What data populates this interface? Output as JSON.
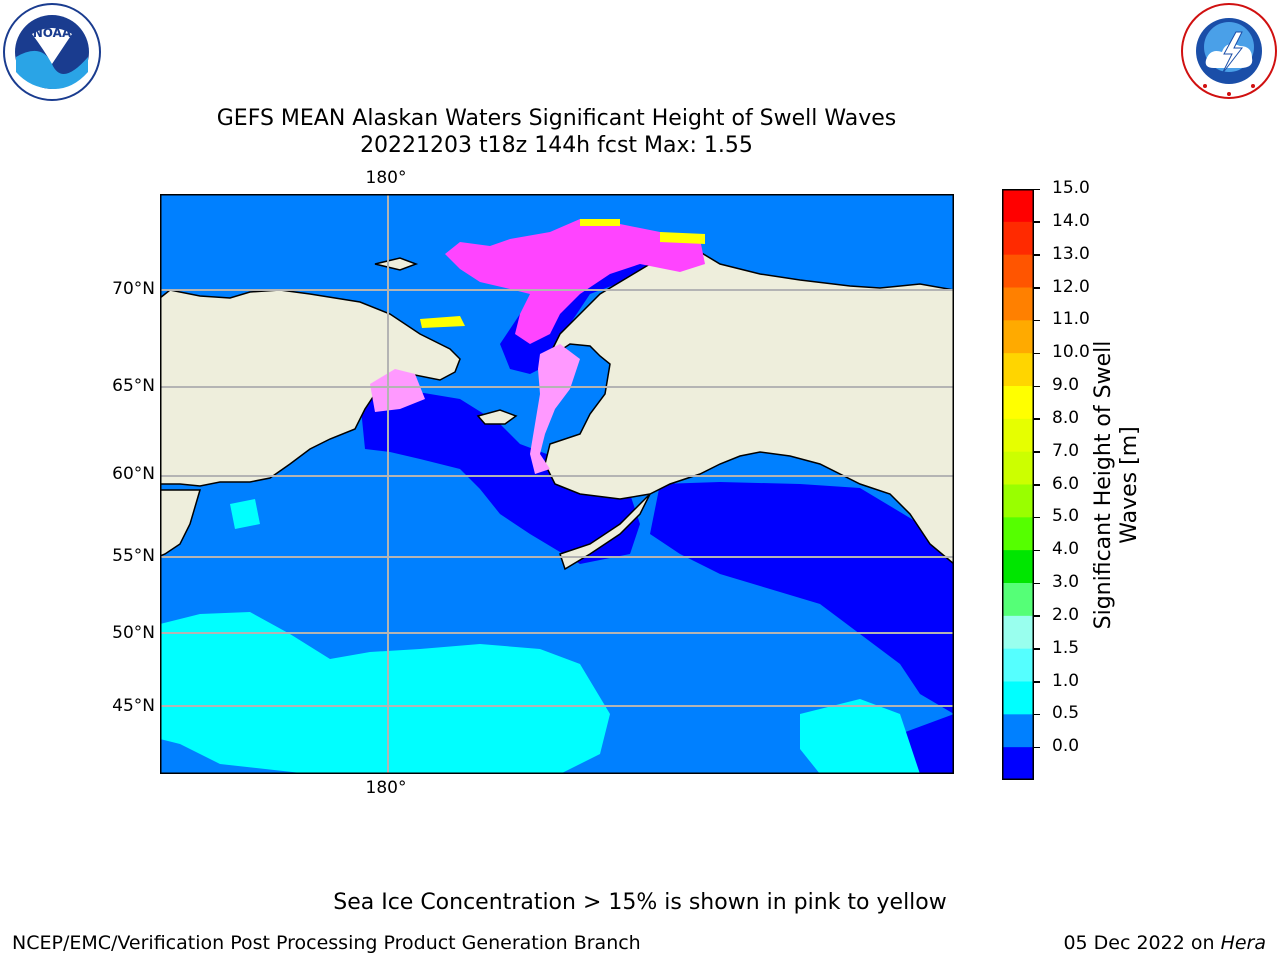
{
  "title": {
    "line1": "GEFS MEAN Alaskan Waters Significant Height of Swell Waves",
    "line2": "20221203 t18z 144h fcst   Max: 1.55"
  },
  "logos": {
    "left": "NOAA",
    "right": "NATIONAL WEATHER SERVICE"
  },
  "map": {
    "lon_labels": [
      "180°",
      "180°"
    ],
    "lat_labels": [
      "70°N",
      "65°N",
      "60°N",
      "55°N",
      "50°N",
      "45°N"
    ],
    "colors": {
      "land": "#eeeedc",
      "ocean_0_05": "#0000ff",
      "ocean_05_10": "#0080ff",
      "ocean_10_15": "#00ffff",
      "ice_pink": "#ff44ff",
      "ice_light": "#ff99ff",
      "ice_yellow": "#ffff00",
      "grid": "#b4b4b4"
    }
  },
  "colorbar": {
    "label": "Significant Height of Swell Waves [m]",
    "label_line1": "Significant Height of Swell",
    "label_line2": "Waves [m]",
    "ticks": [
      "15.0",
      "14.0",
      "13.0",
      "12.0",
      "11.0",
      "10.0",
      "9.0",
      "8.0",
      "7.0",
      "6.0",
      "5.0",
      "4.0",
      "3.0",
      "2.0",
      "1.5",
      "1.0",
      "0.5",
      "0.0"
    ],
    "colors_top_to_bottom": [
      "#ff0000",
      "#ff2a00",
      "#ff5500",
      "#ff8000",
      "#ffaa00",
      "#ffd500",
      "#ffff00",
      "#e6ff00",
      "#ccff00",
      "#99ff00",
      "#55ff00",
      "#00e600",
      "#55ff77",
      "#99ffee",
      "#55ffff",
      "#00ffff",
      "#0080ff",
      "#0000ff"
    ]
  },
  "note": "Sea Ice Concentration > 15% is shown in pink to yellow",
  "footer": {
    "left": "NCEP/EMC/Verification Post Processing Product Generation Branch",
    "date": "05 Dec 2022 on ",
    "machine": "Hera"
  }
}
